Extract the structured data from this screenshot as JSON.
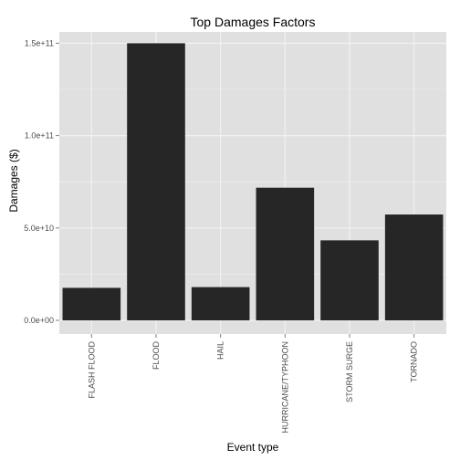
{
  "chart_data": {
    "type": "bar",
    "title": "Top Damages Factors",
    "xlabel": "Event type",
    "ylabel": "Damages ($)",
    "categories": [
      "FLASH FLOOD",
      "FLOOD",
      "HAIL",
      "HURRICANE/TYPHOON",
      "STORM SURGE",
      "TORNADO"
    ],
    "values": [
      17600000000,
      150000000000,
      18000000000,
      71800000000,
      43300000000,
      57300000000
    ],
    "ylim": [
      0,
      160000000000
    ],
    "yticks": [
      0,
      50000000000,
      100000000000,
      150000000000
    ],
    "ytick_labels": [
      "0.0e+00",
      "5.0e+10",
      "1.0e+11",
      "1.5e+11"
    ],
    "grid": true,
    "bar_color": "#262626",
    "panel_background": "#e0e0e0",
    "grid_color": "#f2f2f2"
  }
}
